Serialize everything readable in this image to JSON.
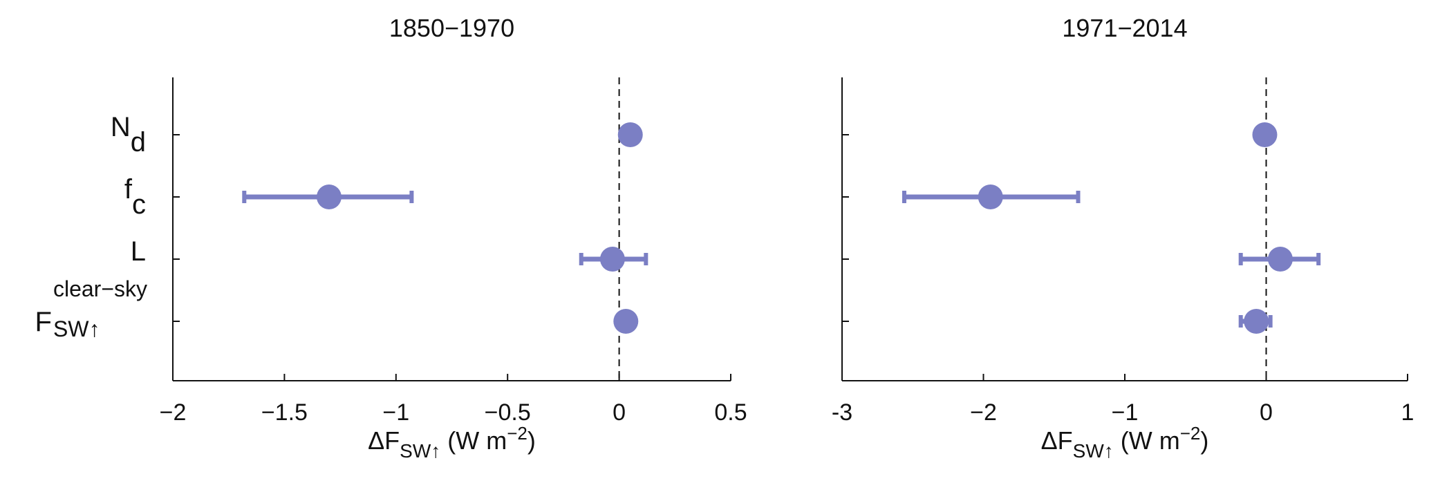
{
  "chart_data": [
    {
      "type": "dotplot",
      "title": "1850−1970",
      "categories": [
        {
          "text": "N",
          "sub": "d"
        },
        {
          "text": "f",
          "sub": "c"
        },
        {
          "text": "L"
        },
        {
          "text": "F",
          "sup": "clear−sky",
          "sub": "SW↑"
        }
      ],
      "values": [
        0.05,
        -1.3,
        -0.03,
        0.03
      ],
      "low": [
        null,
        -1.68,
        -0.17,
        null
      ],
      "high": [
        null,
        -0.93,
        0.12,
        null
      ],
      "color": "#7b7fc4",
      "xlim": [
        -2,
        0.5
      ],
      "xticks": [
        {
          "value": -2,
          "label": "−2"
        },
        {
          "value": -1.5,
          "label": "−1.5"
        },
        {
          "value": -1,
          "label": "−1"
        },
        {
          "value": -0.5,
          "label": "−0.5"
        },
        0,
        0.5
      ],
      "x_label": {
        "text": "ΔF",
        "sub": "SW↑",
        "rest": " (W m",
        "sup": "−2",
        "end": ")"
      },
      "reference_line": 0
    },
    {
      "type": "dotplot",
      "title": "1971−2014",
      "values": [
        -0.01,
        -1.95,
        0.1,
        -0.07
      ],
      "low": [
        null,
        -2.56,
        -0.18,
        -0.18
      ],
      "high": [
        null,
        -1.33,
        0.37,
        0.03
      ],
      "color": "#7b7fc4",
      "xlim": [
        -3,
        1
      ],
      "xticks": [
        {
          "value": -3,
          "label": "-3"
        },
        {
          "value": -2,
          "label": "−2"
        },
        {
          "value": -1,
          "label": "−1"
        },
        0,
        1
      ],
      "x_label": {
        "text": "ΔF",
        "sub": "SW↑",
        "rest": " (W m",
        "sup": "−2",
        "end": ")"
      },
      "reference_line": 0
    }
  ]
}
